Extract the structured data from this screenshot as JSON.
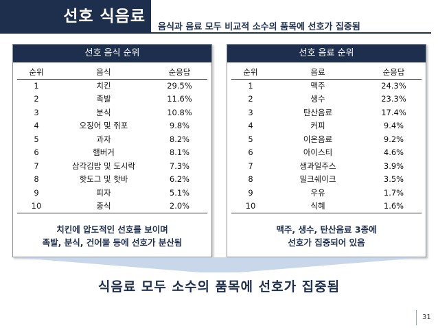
{
  "header": {
    "title": "선호 식음료",
    "subtitle": "음식과 음료 모두 비교적 소수의 품목에 선호가 집중됨"
  },
  "food_panel": {
    "title": "선호 음식 순위",
    "columns": [
      "순위",
      "음식",
      "순응답"
    ],
    "rows": [
      [
        "1",
        "치킨",
        "29.5%"
      ],
      [
        "2",
        "족발",
        "11.6%"
      ],
      [
        "3",
        "분식",
        "10.8%"
      ],
      [
        "4",
        "오징어 및 쥐포",
        "9.8%"
      ],
      [
        "5",
        "과자",
        "8.2%"
      ],
      [
        "6",
        "햄버거",
        "8.1%"
      ],
      [
        "7",
        "삼각김밥 및 도시락",
        "7.3%"
      ],
      [
        "8",
        "핫도그 및 핫바",
        "6.2%"
      ],
      [
        "9",
        "피자",
        "5.1%"
      ],
      [
        "10",
        "중식",
        "2.0%"
      ]
    ],
    "note_line1": "치킨에 압도적인 선호를 보이며",
    "note_line2": "족발, 분식, 건어물 등에 선호가 분산됨"
  },
  "drink_panel": {
    "title": "선호 음료 순위",
    "columns": [
      "순위",
      "음료",
      "순응답"
    ],
    "rows": [
      [
        "1",
        "맥주",
        "24.3%"
      ],
      [
        "2",
        "생수",
        "23.3%"
      ],
      [
        "3",
        "탄산음료",
        "17.4%"
      ],
      [
        "4",
        "커피",
        "9.4%"
      ],
      [
        "5",
        "이온음료",
        "9.2%"
      ],
      [
        "6",
        "아이스티",
        "4.6%"
      ],
      [
        "7",
        "생과일주스",
        "3.9%"
      ],
      [
        "8",
        "밀크쉐이크",
        "3.5%"
      ],
      [
        "9",
        "우유",
        "1.7%"
      ],
      [
        "10",
        "식혜",
        "1.6%"
      ]
    ],
    "note_line1": "맥주, 생수, 탄산음료 3종에",
    "note_line2": "선호가 집중되어 있음"
  },
  "conclusion": "식음료 모두 소수의 품목에 선호가 집중됨",
  "page_number": "31",
  "colors": {
    "navy": "#1e2f4e",
    "funnel": "#c9d7ea"
  }
}
